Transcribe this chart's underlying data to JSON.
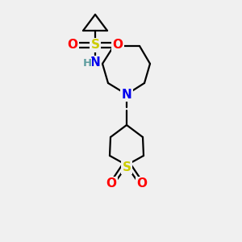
{
  "background_color": "#f0f0f0",
  "atom_colors": {
    "C": "#000000",
    "N": "#0000ee",
    "S": "#cccc00",
    "O": "#ff0000",
    "H": "#5f9ea0"
  },
  "bond_color": "#000000",
  "bond_width": 1.6,
  "figsize": [
    3.0,
    3.0
  ],
  "dpi": 100
}
